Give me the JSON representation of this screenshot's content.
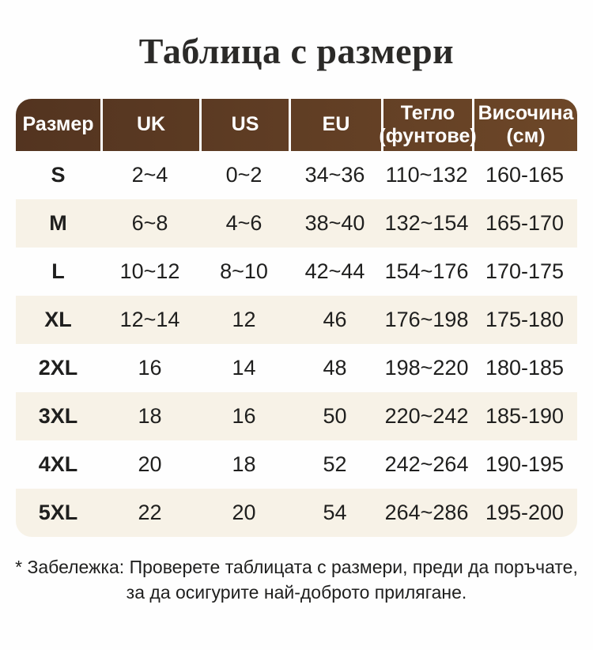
{
  "title": "Таблица с размери",
  "table": {
    "columns": [
      {
        "label": "Размер"
      },
      {
        "label": "UK"
      },
      {
        "label": "US"
      },
      {
        "label": "EU"
      },
      {
        "label": "Тегло",
        "sub": "(фунтове)"
      },
      {
        "label": "Височина",
        "sub": "(см)"
      }
    ],
    "rows": [
      [
        "S",
        "2~4",
        "0~2",
        "34~36",
        "110~132",
        "160-165"
      ],
      [
        "M",
        "6~8",
        "4~6",
        "38~40",
        "132~154",
        "165-170"
      ],
      [
        "L",
        "10~12",
        "8~10",
        "42~44",
        "154~176",
        "170-175"
      ],
      [
        "XL",
        "12~14",
        "12",
        "46",
        "176~198",
        "175-180"
      ],
      [
        "2XL",
        "16",
        "14",
        "48",
        "198~220",
        "180-185"
      ],
      [
        "3XL",
        "18",
        "16",
        "50",
        "220~242",
        "185-190"
      ],
      [
        "4XL",
        "20",
        "18",
        "52",
        "242~264",
        "190-195"
      ],
      [
        "5XL",
        "22",
        "20",
        "54",
        "264~286",
        "195-200"
      ]
    ]
  },
  "note": {
    "line1": "* Забележка: Проверете таблицата с размери, преди да поръчате,",
    "line2": "за да осигурите най-доброто прилягане."
  },
  "colors": {
    "header_gradient_left": "#533420",
    "header_gradient_right": "#6d4728",
    "header_text": "#ffffff",
    "stripe_row": "#f7f2e7",
    "body_text": "#1f1f1e",
    "title_text": "#2b2a28"
  }
}
